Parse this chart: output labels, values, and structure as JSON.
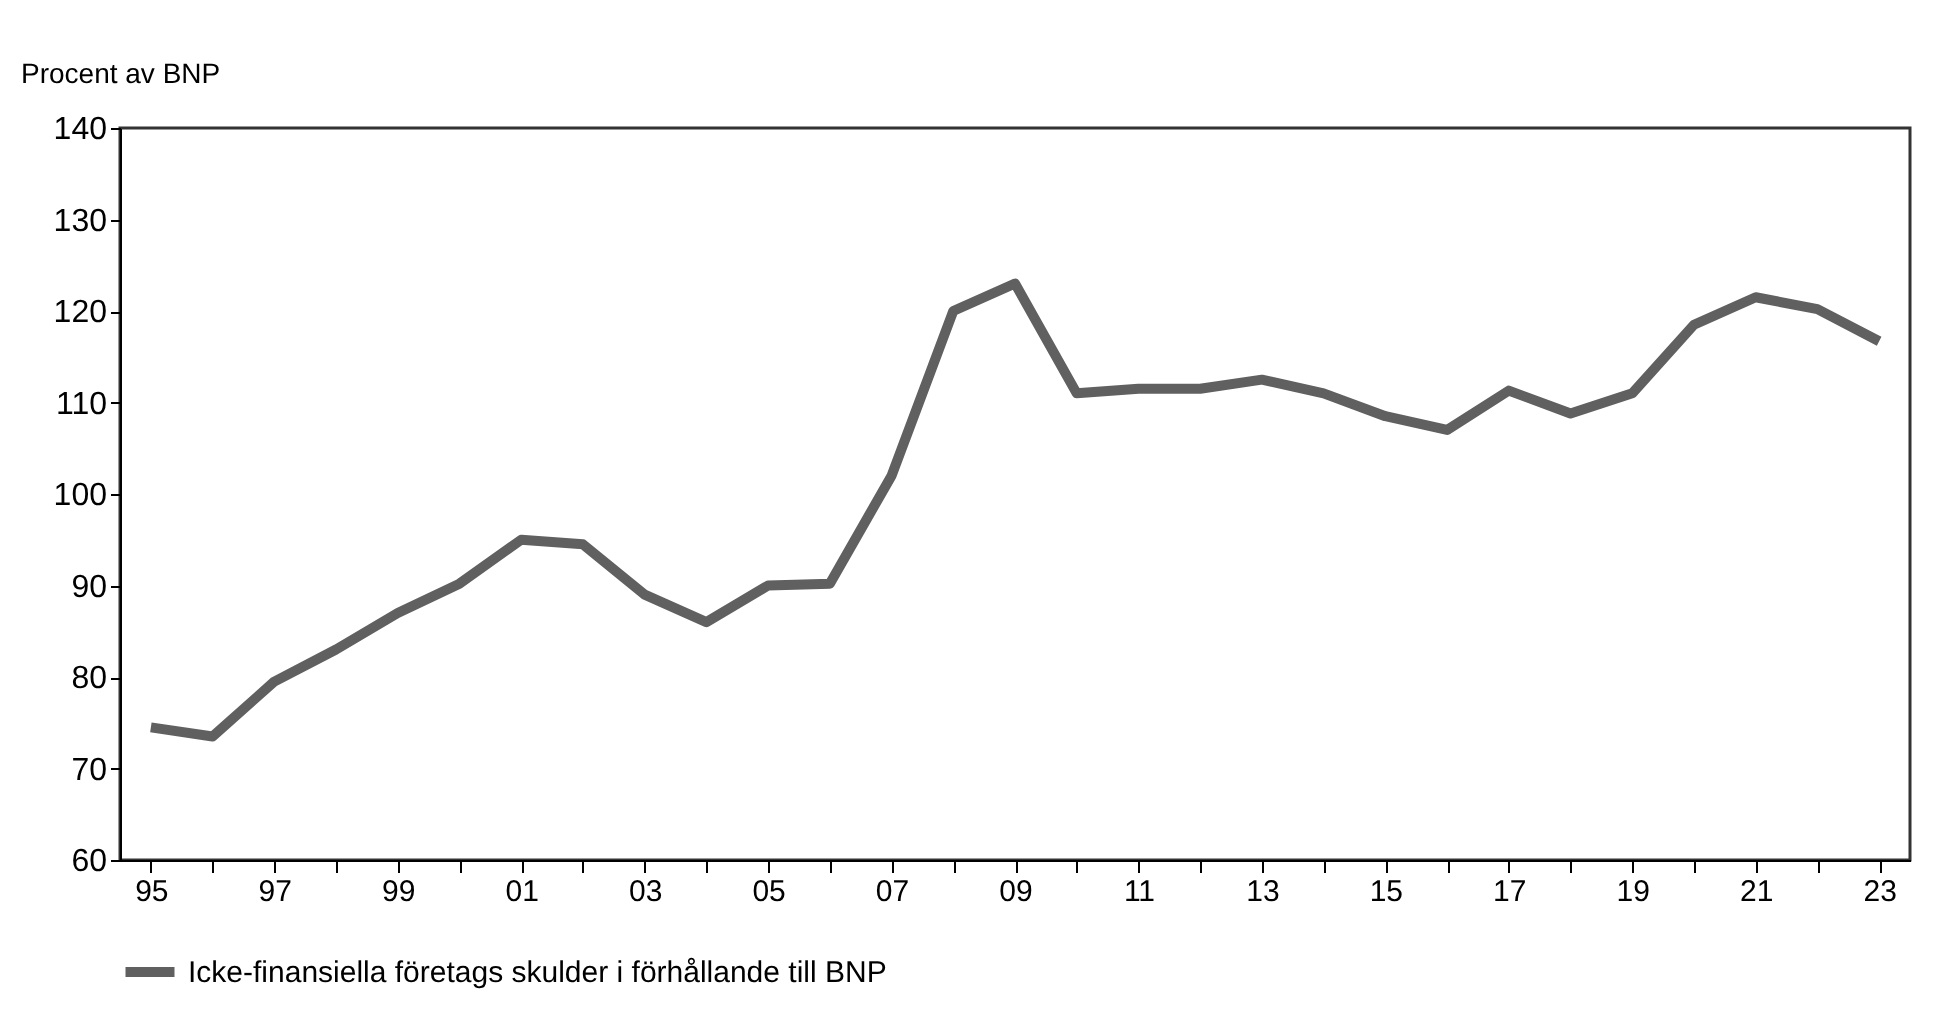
{
  "chart_data": {
    "type": "line",
    "ylabel": "Procent av BNP",
    "categories": [
      "95",
      null,
      "97",
      null,
      "99",
      null,
      "01",
      null,
      "03",
      null,
      "05",
      null,
      "07",
      null,
      "09",
      null,
      "11",
      null,
      "13",
      null,
      "15",
      null,
      "17",
      null,
      "19",
      null,
      "21",
      null,
      "23"
    ],
    "series": [
      {
        "name": "Icke-finansiella företags skulder i förhållande till BNP",
        "color": "#606060",
        "values": [
          74.5,
          73.5,
          79.5,
          83,
          87,
          90.2,
          95,
          94.5,
          89,
          86,
          90,
          90.2,
          102,
          120,
          123,
          111,
          111.5,
          111.5,
          112.5,
          111,
          108.5,
          107,
          111.3,
          108.8,
          111,
          118.5,
          121.5,
          120.2,
          116.7
        ]
      }
    ],
    "ylim": [
      60,
      140
    ],
    "yticks": [
      60,
      70,
      80,
      90,
      100,
      110,
      120,
      130,
      140
    ],
    "grid": false,
    "legend": "bottom",
    "marker": "none",
    "line_style": "solid"
  }
}
